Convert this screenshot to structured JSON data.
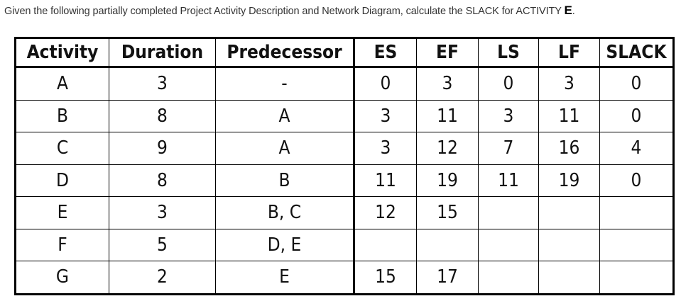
{
  "question": {
    "text": "Given the following partially completed Project Activity Description and Network Diagram, calculate the SLACK for ACTIVITY ",
    "activity": "E",
    "end": "."
  },
  "table": {
    "headers": [
      "Activity",
      "Duration",
      "Predecessor",
      "ES",
      "EF",
      "LS",
      "LF",
      "SLACK"
    ],
    "rows": [
      [
        "A",
        "3",
        "-",
        "0",
        "3",
        "0",
        "3",
        "0"
      ],
      [
        "B",
        "8",
        "A",
        "3",
        "11",
        "3",
        "11",
        "0"
      ],
      [
        "C",
        "9",
        "A",
        "3",
        "12",
        "7",
        "16",
        "4"
      ],
      [
        "D",
        "8",
        "B",
        "11",
        "19",
        "11",
        "19",
        "0"
      ],
      [
        "E",
        "3",
        "B, C",
        "12",
        "15",
        "",
        "",
        ""
      ],
      [
        "F",
        "5",
        "D, E",
        "",
        "",
        "",
        "",
        ""
      ],
      [
        "G",
        "2",
        "E",
        "15",
        "17",
        "",
        "",
        ""
      ]
    ]
  }
}
